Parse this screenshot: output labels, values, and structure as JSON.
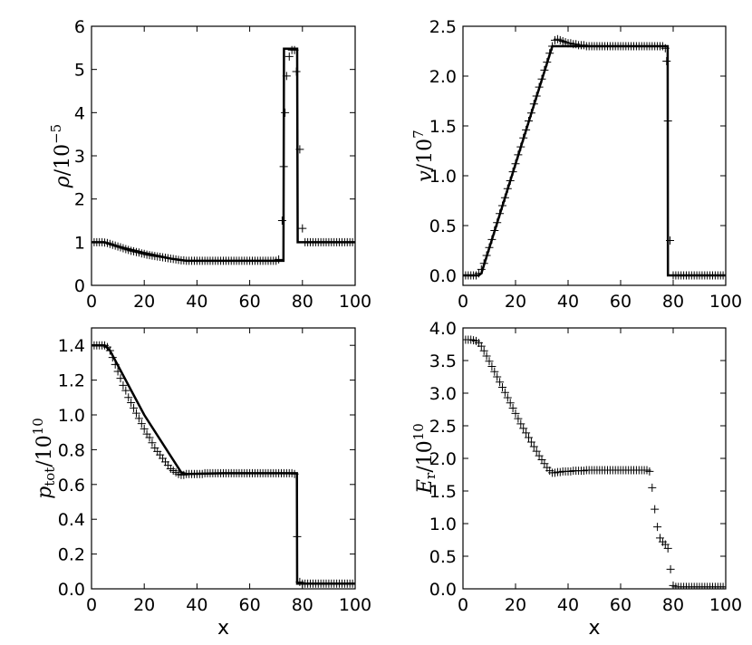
{
  "chart_data": [
    {
      "type": "line",
      "ylabel_base": "ρ",
      "ylabel_den": "10",
      "ylabel_exp": "−5",
      "xlabel": "",
      "xlim": [
        0,
        100
      ],
      "ylim": [
        0,
        6
      ],
      "xticks": [
        0,
        20,
        40,
        60,
        80,
        100
      ],
      "xtick_labels": [
        "0",
        "20",
        "40",
        "60",
        "80",
        "100"
      ],
      "yticks": [
        0,
        1,
        2,
        3,
        4,
        5,
        6
      ],
      "ytick_labels": [
        "0",
        "1",
        "2",
        "3",
        "4",
        "5",
        "6"
      ],
      "series": [
        {
          "style": "line",
          "x": [
            0,
            5,
            10,
            20,
            30,
            36,
            50,
            60,
            70,
            72.8,
            73,
            78,
            78.2,
            85,
            100
          ],
          "y": [
            1.0,
            1.0,
            0.9,
            0.75,
            0.62,
            0.57,
            0.57,
            0.57,
            0.57,
            0.57,
            5.48,
            5.48,
            1.0,
            1.0,
            1.0
          ]
        },
        {
          "style": "plus",
          "x": [
            0,
            1,
            2,
            3,
            4,
            5,
            6,
            7,
            8,
            9,
            10,
            11,
            12,
            13,
            14,
            15,
            16,
            17,
            18,
            19,
            20,
            21,
            22,
            23,
            24,
            25,
            26,
            27,
            28,
            29,
            30,
            31,
            32,
            33,
            34,
            35,
            36,
            37,
            38,
            39,
            40,
            41,
            42,
            43,
            44,
            45,
            46,
            47,
            48,
            49,
            50,
            51,
            52,
            53,
            54,
            55,
            56,
            57,
            58,
            59,
            60,
            61,
            62,
            63,
            64,
            65,
            66,
            67,
            68,
            69,
            70,
            71,
            72.3,
            72.9,
            73.4,
            74,
            75,
            76,
            77,
            77.7,
            79,
            80,
            81,
            82,
            83,
            84,
            85,
            86,
            87,
            88,
            89,
            90,
            91,
            92,
            93,
            94,
            95,
            96,
            97,
            98,
            99,
            100
          ],
          "y": [
            1.0,
            1.0,
            1.0,
            1.0,
            1.0,
            0.99,
            0.98,
            0.96,
            0.94,
            0.92,
            0.9,
            0.88,
            0.86,
            0.84,
            0.82,
            0.8,
            0.79,
            0.77,
            0.76,
            0.74,
            0.73,
            0.71,
            0.7,
            0.69,
            0.68,
            0.67,
            0.66,
            0.65,
            0.64,
            0.63,
            0.62,
            0.61,
            0.6,
            0.59,
            0.58,
            0.58,
            0.57,
            0.57,
            0.57,
            0.57,
            0.57,
            0.57,
            0.57,
            0.57,
            0.57,
            0.57,
            0.57,
            0.57,
            0.57,
            0.57,
            0.57,
            0.57,
            0.57,
            0.57,
            0.57,
            0.57,
            0.57,
            0.57,
            0.57,
            0.57,
            0.57,
            0.57,
            0.57,
            0.57,
            0.57,
            0.57,
            0.57,
            0.57,
            0.57,
            0.57,
            0.57,
            0.6,
            1.5,
            2.75,
            4.0,
            4.85,
            5.3,
            5.45,
            5.45,
            4.95,
            3.15,
            1.32,
            1.0,
            1.0,
            1.0,
            1.0,
            1.0,
            1.0,
            1.0,
            1.0,
            1.0,
            1.0,
            1.0,
            1.0,
            1.0,
            1.0,
            1.0,
            1.0,
            1.0,
            1.0,
            1.0,
            1.0
          ]
        }
      ]
    },
    {
      "type": "line",
      "ylabel_base": "v",
      "ylabel_den": "10",
      "ylabel_exp": "7",
      "xlabel": "",
      "xlim": [
        0,
        100
      ],
      "ylim": [
        -0.1,
        2.5
      ],
      "xticks": [
        0,
        20,
        40,
        60,
        80,
        100
      ],
      "xtick_labels": [
        "0",
        "20",
        "40",
        "60",
        "80",
        "100"
      ],
      "yticks": [
        0,
        0.5,
        1.0,
        1.5,
        2.0,
        2.5
      ],
      "ytick_labels": [
        "0.0",
        "0.5",
        "1.0",
        "1.5",
        "2.0",
        "2.5"
      ],
      "series": [
        {
          "style": "line",
          "x": [
            0,
            6,
            7,
            34,
            35,
            77.9,
            78,
            100
          ],
          "y": [
            0,
            0,
            0.02,
            2.3,
            2.3,
            2.3,
            0,
            0
          ]
        },
        {
          "style": "plus",
          "x": [
            0,
            1,
            2,
            3,
            4,
            5,
            6,
            7,
            8,
            9,
            10,
            11,
            12,
            13,
            14,
            15,
            16,
            17,
            18,
            19,
            20,
            21,
            22,
            23,
            24,
            25,
            26,
            27,
            28,
            29,
            30,
            31,
            32,
            33,
            34,
            35,
            36,
            37,
            38,
            39,
            40,
            41,
            42,
            43,
            44,
            45,
            46,
            47,
            48,
            49,
            50,
            51,
            52,
            53,
            54,
            55,
            56,
            57,
            58,
            59,
            60,
            61,
            62,
            63,
            64,
            65,
            66,
            67,
            68,
            69,
            70,
            71,
            72,
            73,
            74,
            75,
            76,
            77,
            77.5,
            78,
            78.8,
            80,
            81,
            82,
            83,
            84,
            85,
            86,
            87,
            88,
            89,
            90,
            91,
            92,
            93,
            94,
            95,
            96,
            97,
            98,
            99,
            100
          ],
          "y": [
            0,
            0,
            0,
            0,
            0,
            0,
            0.02,
            0.06,
            0.12,
            0.2,
            0.28,
            0.36,
            0.45,
            0.53,
            0.62,
            0.7,
            0.78,
            0.87,
            0.95,
            1.04,
            1.12,
            1.21,
            1.29,
            1.38,
            1.46,
            1.55,
            1.63,
            1.72,
            1.8,
            1.89,
            1.97,
            2.06,
            2.14,
            2.23,
            2.3,
            2.36,
            2.37,
            2.36,
            2.35,
            2.34,
            2.33,
            2.33,
            2.32,
            2.32,
            2.31,
            2.31,
            2.31,
            2.3,
            2.3,
            2.3,
            2.3,
            2.3,
            2.3,
            2.3,
            2.3,
            2.3,
            2.3,
            2.3,
            2.3,
            2.3,
            2.3,
            2.3,
            2.3,
            2.3,
            2.3,
            2.3,
            2.3,
            2.3,
            2.3,
            2.3,
            2.3,
            2.3,
            2.3,
            2.3,
            2.3,
            2.3,
            2.3,
            2.28,
            2.15,
            1.55,
            0.35,
            0,
            0,
            0,
            0,
            0,
            0,
            0,
            0,
            0,
            0,
            0,
            0,
            0,
            0,
            0,
            0,
            0,
            0,
            0,
            0,
            0
          ]
        }
      ]
    },
    {
      "type": "line",
      "ylabel_base": "p",
      "ylabel_sub": "tot",
      "ylabel_den": "10",
      "ylabel_exp": "10",
      "xlabel": "x",
      "xlim": [
        0,
        100
      ],
      "ylim": [
        0,
        1.5
      ],
      "xticks": [
        0,
        20,
        40,
        60,
        80,
        100
      ],
      "xtick_labels": [
        "0",
        "20",
        "40",
        "60",
        "80",
        "100"
      ],
      "yticks": [
        0,
        0.2,
        0.4,
        0.6,
        0.8,
        1.0,
        1.2,
        1.4
      ],
      "ytick_labels": [
        "0.0",
        "0.2",
        "0.4",
        "0.6",
        "0.8",
        "1.0",
        "1.2",
        "1.4"
      ],
      "series": [
        {
          "style": "line",
          "x": [
            0,
            5,
            7,
            20,
            34,
            36,
            50,
            70,
            77.9,
            78,
            100
          ],
          "y": [
            1.4,
            1.4,
            1.37,
            1.0,
            0.67,
            0.66,
            0.665,
            0.665,
            0.665,
            0.03,
            0.03
          ]
        },
        {
          "style": "plus",
          "x": [
            0,
            1,
            2,
            3,
            4,
            5,
            6,
            7,
            8,
            9,
            10,
            11,
            12,
            13,
            14,
            15,
            16,
            17,
            18,
            19,
            20,
            21,
            22,
            23,
            24,
            25,
            26,
            27,
            28,
            29,
            30,
            31,
            32,
            33,
            34,
            35,
            36,
            37,
            38,
            39,
            40,
            41,
            42,
            43,
            44,
            45,
            46,
            47,
            48,
            49,
            50,
            51,
            52,
            53,
            54,
            55,
            56,
            57,
            58,
            59,
            60,
            61,
            62,
            63,
            64,
            65,
            66,
            67,
            68,
            69,
            70,
            71,
            72,
            73,
            74,
            75,
            76,
            77,
            78,
            79,
            80,
            81,
            82,
            83,
            84,
            85,
            86,
            87,
            88,
            89,
            90,
            91,
            92,
            93,
            94,
            95,
            96,
            97,
            98,
            99,
            100
          ],
          "y": [
            1.4,
            1.4,
            1.4,
            1.4,
            1.4,
            1.4,
            1.39,
            1.37,
            1.33,
            1.29,
            1.25,
            1.21,
            1.17,
            1.14,
            1.1,
            1.07,
            1.04,
            1.01,
            0.98,
            0.95,
            0.92,
            0.89,
            0.87,
            0.84,
            0.81,
            0.79,
            0.77,
            0.75,
            0.73,
            0.71,
            0.69,
            0.68,
            0.67,
            0.66,
            0.655,
            0.655,
            0.66,
            0.66,
            0.66,
            0.66,
            0.66,
            0.66,
            0.66,
            0.665,
            0.665,
            0.665,
            0.665,
            0.665,
            0.665,
            0.665,
            0.665,
            0.665,
            0.665,
            0.665,
            0.665,
            0.665,
            0.665,
            0.665,
            0.665,
            0.665,
            0.665,
            0.665,
            0.665,
            0.665,
            0.665,
            0.665,
            0.665,
            0.665,
            0.665,
            0.665,
            0.665,
            0.665,
            0.665,
            0.665,
            0.665,
            0.665,
            0.665,
            0.66,
            0.3,
            0.04,
            0.03,
            0.03,
            0.03,
            0.03,
            0.03,
            0.03,
            0.03,
            0.03,
            0.03,
            0.03,
            0.03,
            0.03,
            0.03,
            0.03,
            0.03,
            0.03,
            0.03,
            0.03,
            0.03,
            0.03,
            0.03
          ]
        }
      ]
    },
    {
      "type": "scatter",
      "ylabel_base": "E",
      "ylabel_sub": "r",
      "ylabel_den": "10",
      "ylabel_exp": "10",
      "xlabel": "x",
      "xlim": [
        0,
        100
      ],
      "ylim": [
        0,
        4.0
      ],
      "xticks": [
        0,
        20,
        40,
        60,
        80,
        100
      ],
      "xtick_labels": [
        "0",
        "20",
        "40",
        "60",
        "80",
        "100"
      ],
      "yticks": [
        0,
        0.5,
        1.0,
        1.5,
        2.0,
        2.5,
        3.0,
        3.5,
        4.0
      ],
      "ytick_labels": [
        "0.0",
        "0.5",
        "1.0",
        "1.5",
        "2.0",
        "2.5",
        "3.0",
        "3.5",
        "4.0"
      ],
      "series": [
        {
          "style": "plus",
          "x": [
            0,
            1,
            2,
            3,
            4,
            5,
            6,
            7,
            8,
            9,
            10,
            11,
            12,
            13,
            14,
            15,
            16,
            17,
            18,
            19,
            20,
            21,
            22,
            23,
            24,
            25,
            26,
            27,
            28,
            29,
            30,
            31,
            32,
            33,
            34,
            35,
            36,
            37,
            38,
            39,
            40,
            41,
            42,
            43,
            44,
            45,
            46,
            47,
            48,
            49,
            50,
            51,
            52,
            53,
            54,
            55,
            56,
            57,
            58,
            59,
            60,
            61,
            62,
            63,
            64,
            65,
            66,
            67,
            68,
            69,
            70,
            71,
            72,
            73,
            74,
            75,
            76,
            77,
            78,
            79,
            80,
            81,
            82,
            83,
            84,
            85,
            86,
            87,
            88,
            89,
            90,
            91,
            92,
            93,
            94,
            95,
            96,
            97,
            98,
            99,
            100
          ],
          "y": [
            3.82,
            3.82,
            3.82,
            3.82,
            3.81,
            3.8,
            3.77,
            3.72,
            3.65,
            3.57,
            3.49,
            3.41,
            3.33,
            3.25,
            3.17,
            3.09,
            3.01,
            2.93,
            2.85,
            2.77,
            2.69,
            2.61,
            2.53,
            2.46,
            2.39,
            2.32,
            2.25,
            2.18,
            2.11,
            2.04,
            1.98,
            1.92,
            1.86,
            1.81,
            1.78,
            1.78,
            1.79,
            1.79,
            1.8,
            1.8,
            1.8,
            1.8,
            1.81,
            1.81,
            1.81,
            1.81,
            1.81,
            1.82,
            1.82,
            1.82,
            1.82,
            1.82,
            1.82,
            1.82,
            1.82,
            1.82,
            1.82,
            1.82,
            1.82,
            1.82,
            1.82,
            1.82,
            1.82,
            1.82,
            1.82,
            1.82,
            1.82,
            1.82,
            1.82,
            1.82,
            1.82,
            1.8,
            1.55,
            1.22,
            0.95,
            0.78,
            0.72,
            0.68,
            0.62,
            0.3,
            0.05,
            0.03,
            0.03,
            0.03,
            0.03,
            0.03,
            0.03,
            0.03,
            0.03,
            0.03,
            0.03,
            0.03,
            0.03,
            0.03,
            0.03,
            0.03,
            0.03,
            0.03,
            0.03,
            0.03,
            0.03
          ]
        }
      ]
    }
  ]
}
